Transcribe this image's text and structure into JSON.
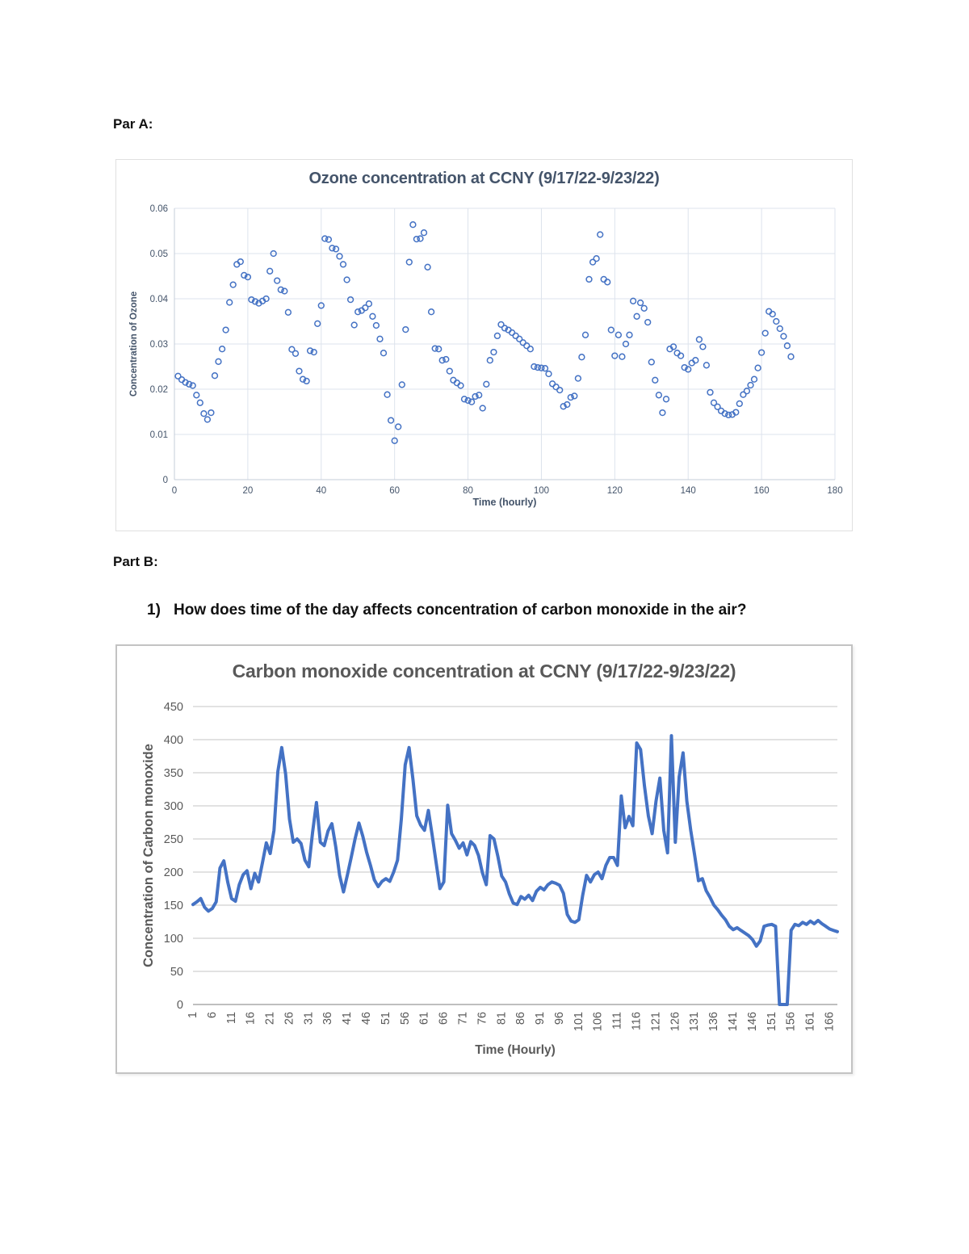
{
  "document": {
    "part_a_label": "Par A:",
    "part_b_label": "Part B:",
    "question": {
      "number": "1)",
      "text": "How does time of the day affects concentration of carbon monoxide in the air?"
    }
  },
  "chart_data": [
    {
      "id": "ozone",
      "type": "scatter",
      "title": "Ozone concentration at CCNY (9/17/22-9/23/22)",
      "xlabel": "Time (hourly)",
      "ylabel": "Concentration of Ozone",
      "xlim": [
        0,
        180
      ],
      "ylim": [
        0,
        0.06
      ],
      "x_ticks": [
        0,
        20,
        40,
        60,
        80,
        100,
        120,
        140,
        160,
        180
      ],
      "y_ticks": [
        0,
        0.01,
        0.02,
        0.03,
        0.04,
        0.05,
        0.06
      ],
      "y_tick_labels": [
        "0",
        "0.01",
        "0.02",
        "0.03",
        "0.04",
        "0.05",
        "0.06"
      ],
      "grid": "both",
      "legend": "none",
      "marker": "open-circle",
      "color": "#4472C4",
      "x_start_hour": 1,
      "values": [
        0.0229,
        0.0221,
        0.0215,
        0.0211,
        0.0208,
        0.0187,
        0.017,
        0.0146,
        0.0133,
        0.0148,
        0.023,
        0.0261,
        0.0289,
        0.0331,
        0.0392,
        0.0431,
        0.0476,
        0.0482,
        0.0452,
        0.0448,
        0.0398,
        0.0394,
        0.039,
        0.0395,
        0.04,
        0.0461,
        0.05,
        0.044,
        0.042,
        0.0417,
        0.037,
        0.0288,
        0.0279,
        0.024,
        0.0222,
        0.0218,
        0.0285,
        0.0282,
        0.0345,
        0.0385,
        0.0533,
        0.0531,
        0.0512,
        0.051,
        0.0494,
        0.0476,
        0.0442,
        0.0398,
        0.0342,
        0.0371,
        0.0374,
        0.038,
        0.0389,
        0.0361,
        0.0341,
        0.0311,
        0.028,
        0.0188,
        0.0131,
        0.0086,
        0.0117,
        0.021,
        0.0332,
        0.0481,
        0.0564,
        0.0532,
        0.0533,
        0.0546,
        0.047,
        0.0371,
        0.029,
        0.0289,
        0.0264,
        0.0266,
        0.024,
        0.022,
        0.0214,
        0.0208,
        0.0178,
        0.0175,
        0.0172,
        0.0184,
        0.0187,
        0.0158,
        0.0211,
        0.0264,
        0.0282,
        0.0318,
        0.0343,
        0.0335,
        0.0331,
        0.0325,
        0.0318,
        0.0311,
        0.0303,
        0.0296,
        0.0289,
        0.025,
        0.0248,
        0.0247,
        0.0246,
        0.0234,
        0.0212,
        0.0205,
        0.0198,
        0.0162,
        0.0166,
        0.0182,
        0.0185,
        0.0224,
        0.0271,
        0.032,
        0.0443,
        0.0481,
        0.0489,
        0.0542,
        0.0443,
        0.0437,
        0.0331,
        0.0274,
        0.032,
        0.0272,
        0.03,
        0.032,
        0.0395,
        0.0361,
        0.0391,
        0.0379,
        0.0348,
        0.026,
        0.022,
        0.0187,
        0.0148,
        0.0178,
        0.0289,
        0.0294,
        0.028,
        0.0274,
        0.0248,
        0.0244,
        0.0258,
        0.0264,
        0.031,
        0.0294,
        0.0253,
        0.0193,
        0.017,
        0.0161,
        0.0152,
        0.0146,
        0.0143,
        0.0144,
        0.0149,
        0.0168,
        0.0188,
        0.0196,
        0.0209,
        0.0222,
        0.0247,
        0.0281,
        0.0324,
        0.0372,
        0.0366,
        0.035,
        0.0334,
        0.0317,
        0.0296,
        0.0272
      ]
    },
    {
      "id": "co",
      "type": "line",
      "title": "Carbon monoxide concentration at CCNY (9/17/22-9/23/22)",
      "xlabel": "Time (Hourly)",
      "ylabel": "Concentration of Carbon monoxide",
      "ylim": [
        0,
        450
      ],
      "y_ticks": [
        0,
        50,
        100,
        150,
        200,
        250,
        300,
        350,
        400,
        450
      ],
      "x_ticks": [
        1,
        6,
        11,
        16,
        21,
        26,
        31,
        36,
        41,
        46,
        51,
        56,
        61,
        66,
        71,
        76,
        81,
        86,
        91,
        96,
        101,
        106,
        111,
        116,
        121,
        126,
        131,
        136,
        141,
        146,
        151,
        156,
        161,
        166
      ],
      "grid": "horizontal",
      "legend": "none",
      "color": "#4472C4",
      "line_width": 4,
      "x_start_hour": 1,
      "values": [
        151,
        155,
        160,
        147,
        141,
        145,
        155,
        206,
        217,
        185,
        160,
        156,
        181,
        196,
        202,
        175,
        198,
        185,
        214,
        244,
        228,
        263,
        352,
        388,
        348,
        280,
        245,
        250,
        243,
        218,
        208,
        260,
        305,
        245,
        240,
        262,
        273,
        238,
        195,
        170,
        195,
        222,
        250,
        274,
        254,
        230,
        210,
        188,
        178,
        186,
        190,
        186,
        200,
        218,
        280,
        362,
        388,
        340,
        285,
        271,
        263,
        293,
        255,
        215,
        175,
        185,
        301,
        258,
        248,
        236,
        244,
        226,
        246,
        240,
        225,
        199,
        181,
        255,
        250,
        224,
        194,
        185,
        167,
        153,
        151,
        163,
        159,
        165,
        157,
        171,
        177,
        173,
        181,
        185,
        183,
        180,
        168,
        136,
        126,
        124,
        128,
        165,
        195,
        185,
        196,
        200,
        190,
        210,
        222,
        222,
        210,
        315,
        267,
        284,
        270,
        395,
        385,
        330,
        285,
        258,
        307,
        342,
        263,
        229,
        406,
        245,
        344,
        380,
        307,
        263,
        226,
        187,
        190,
        172,
        162,
        150,
        143,
        135,
        128,
        118,
        113,
        116,
        112,
        108,
        104,
        98,
        88,
        96,
        118,
        120,
        121,
        118,
        0,
        0,
        0,
        112,
        121,
        119,
        124,
        121,
        126,
        122,
        127,
        122,
        118,
        114,
        112,
        110
      ]
    }
  ]
}
